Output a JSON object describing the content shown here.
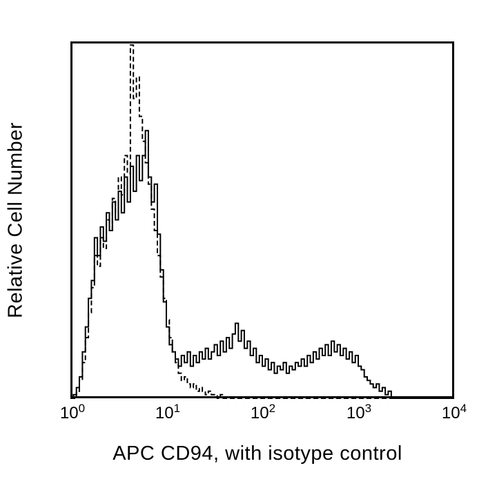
{
  "figure": {
    "background": "#ffffff",
    "frame_color": "#000000"
  },
  "chart_data": {
    "type": "line",
    "subtype": "flow-cytometry-histogram-overlay",
    "title": "",
    "xlabel": "APC CD94, with isotype control",
    "ylabel": "Relative Cell Number",
    "x_scale": "log10",
    "x_log_range": [
      0,
      4
    ],
    "bins_per_decade": 32,
    "grid": false,
    "legend": "none",
    "y_axis": {
      "tick_labels": [],
      "meaning": "relative cell count, unlabeled",
      "range_percent": [
        0,
        100
      ]
    },
    "x_ticks": [
      {
        "base": "10",
        "exp": "0"
      },
      {
        "base": "10",
        "exp": "1"
      },
      {
        "base": "10",
        "exp": "2"
      },
      {
        "base": "10",
        "exp": "3"
      },
      {
        "base": "10",
        "exp": "4"
      }
    ],
    "series": [
      {
        "name": "APC CD94",
        "line_style": "solid",
        "color": "#000000",
        "heights_percent": [
          0,
          1,
          3,
          6,
          13,
          20,
          28,
          33,
          45,
          40,
          48,
          44,
          52,
          47,
          55,
          50,
          58,
          52,
          62,
          55,
          65,
          58,
          68,
          61,
          68,
          75,
          62,
          55,
          60,
          46,
          36,
          27,
          20,
          15,
          13,
          11,
          9,
          12,
          10,
          13,
          9,
          12,
          10,
          13,
          11,
          14,
          11,
          13,
          15,
          12,
          16,
          13,
          17,
          14,
          18,
          21,
          16,
          19,
          14,
          16,
          12,
          14,
          10,
          12,
          9,
          11,
          8,
          10,
          7,
          9,
          8,
          10,
          7,
          9,
          8,
          10,
          9,
          11,
          9,
          12,
          10,
          13,
          11,
          14,
          12,
          15,
          12,
          16,
          13,
          15,
          12,
          14,
          11,
          13,
          10,
          12,
          9,
          8,
          6,
          5,
          4,
          3,
          4,
          2,
          3,
          1,
          2,
          0,
          0,
          0,
          0,
          0,
          0,
          0,
          0,
          0,
          0,
          0,
          0,
          0,
          0,
          0,
          0,
          0,
          0,
          0,
          0,
          0
        ]
      },
      {
        "name": "isotype control",
        "line_style": "dashed",
        "color": "#000000",
        "heights_percent": [
          0,
          0,
          2,
          5,
          10,
          17,
          24,
          31,
          40,
          37,
          45,
          42,
          50,
          47,
          56,
          52,
          62,
          57,
          68,
          63,
          99,
          84,
          90,
          79,
          72,
          66,
          60,
          53,
          47,
          40,
          34,
          28,
          22,
          17,
          13,
          10,
          7,
          5,
          6,
          4,
          3,
          4,
          2,
          3,
          2,
          1,
          2,
          1,
          1,
          0,
          1,
          0,
          0,
          0,
          0,
          0,
          0,
          0,
          0,
          0,
          0,
          0,
          0,
          0,
          0,
          0,
          0,
          0,
          0,
          0,
          0,
          0,
          0,
          0,
          0,
          0,
          0,
          0,
          0,
          0,
          0,
          0,
          0,
          0,
          0,
          0,
          0,
          0,
          0,
          0,
          0,
          0,
          0,
          0,
          0,
          0,
          0,
          0,
          0,
          0,
          0,
          0,
          0,
          0,
          0,
          0,
          0,
          0,
          0,
          0,
          0,
          0,
          0,
          0,
          0,
          0,
          0,
          0,
          0,
          0,
          0,
          0,
          0,
          0,
          0,
          0,
          0,
          0
        ]
      }
    ]
  }
}
